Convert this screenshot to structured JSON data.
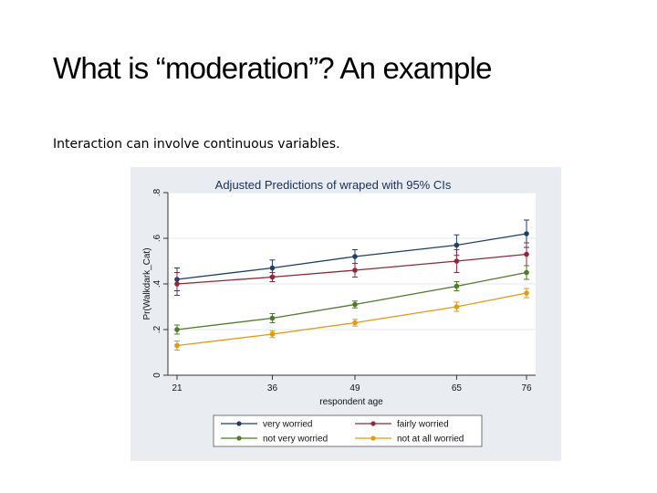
{
  "slide": {
    "title": "What is “moderation”? An example",
    "body": "Interaction can involve continuous variables."
  },
  "chart_data": {
    "type": "line",
    "title": "Adjusted Predictions of wraped with 95% CIs",
    "xlabel": "respondent age",
    "ylabel": "Pr(Walkdark_Cat)",
    "x": [
      21,
      36,
      49,
      65,
      76
    ],
    "x_tick_labels": [
      "21",
      "36",
      "49",
      "65",
      "76"
    ],
    "xlim": [
      21,
      76
    ],
    "ylim": [
      0,
      0.8
    ],
    "y_ticks": [
      0,
      0.2,
      0.4,
      0.6,
      0.8
    ],
    "y_tick_labels": [
      "0",
      ".2",
      ".4",
      ".6",
      ".8"
    ],
    "grid": true,
    "legend_position": "bottom",
    "series": [
      {
        "name": "very worried",
        "color": "#1f3f66",
        "values": [
          0.42,
          0.47,
          0.52,
          0.57,
          0.62
        ],
        "ci": [
          0.05,
          0.035,
          0.03,
          0.045,
          0.06
        ]
      },
      {
        "name": "fairly worried",
        "color": "#8b2a3a",
        "values": [
          0.4,
          0.43,
          0.46,
          0.5,
          0.53
        ],
        "ci": [
          0.05,
          0.02,
          0.03,
          0.05,
          0.05
        ]
      },
      {
        "name": "not very worried",
        "color": "#4f7a28",
        "values": [
          0.2,
          0.25,
          0.31,
          0.39,
          0.45
        ],
        "ci": [
          0.02,
          0.02,
          0.015,
          0.02,
          0.03
        ]
      },
      {
        "name": "not at all worried",
        "color": "#e29a14",
        "values": [
          0.13,
          0.18,
          0.23,
          0.3,
          0.36
        ],
        "ci": [
          0.02,
          0.015,
          0.015,
          0.02,
          0.02
        ]
      }
    ]
  }
}
